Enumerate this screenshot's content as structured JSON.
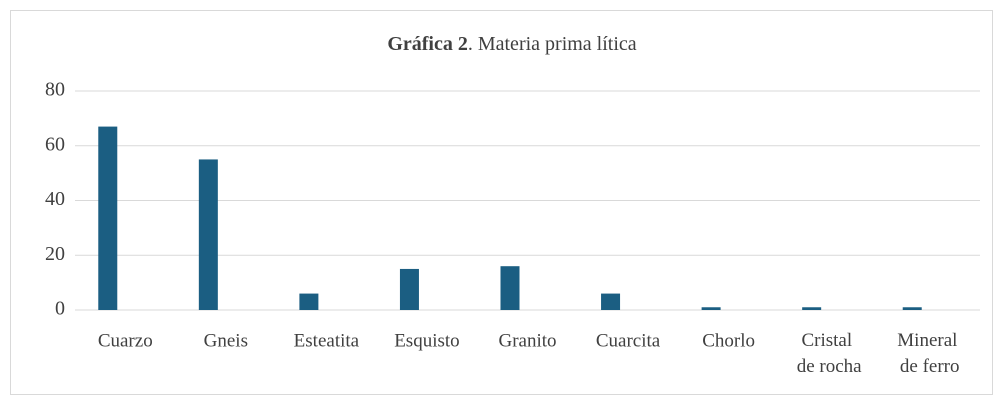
{
  "chart_data": {
    "type": "bar",
    "title_label": "Gráfica 2",
    "title": ". Materia prima lítica",
    "categories": [
      "Cuarzo",
      "Gneis",
      "Esteatita",
      "Esquisto",
      "Granito",
      "Cuarcita",
      "Chorlo",
      "Cristal de rocha",
      "Mineral de ferro"
    ],
    "values": [
      67,
      55,
      6,
      15,
      16,
      6,
      1,
      1,
      1
    ],
    "color": "#1b5e82",
    "ylim": [
      0,
      80
    ],
    "yticks": [
      0,
      20,
      40,
      60,
      80
    ],
    "grid": true
  }
}
